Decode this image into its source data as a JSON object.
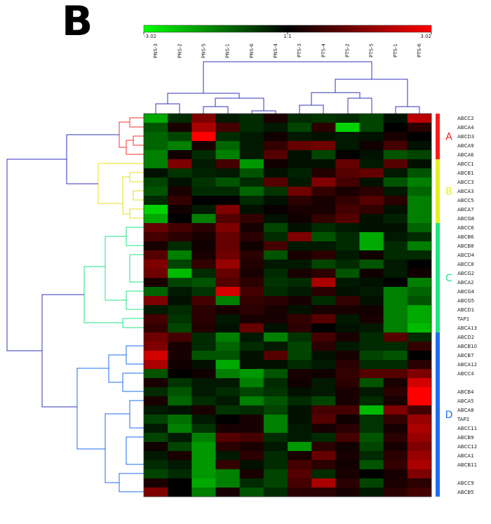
{
  "chart_data": {
    "type": "heatmap",
    "panel_label": "B",
    "colorscale": {
      "low": "#00ff00",
      "mid": "#000000",
      "high": "#ff0000"
    },
    "clim": [
      -3.02,
      3.02
    ],
    "cticks": [
      -3.02,
      {
        "value": 0,
        "label": "1:1"
      },
      3.02
    ],
    "columns": [
      "PNS-3",
      "PNS-2",
      "PNS-5",
      "PNS-1",
      "PNS-6",
      "PNS-4",
      "PTS-3",
      "PTS-4",
      "PTS-2",
      "PTS-5",
      "PTS-1",
      "PTS-6"
    ],
    "rows": [
      "ABCC2",
      "ABCA4",
      "ABCD3",
      "ABCA9",
      "ABCA6",
      "ABCC1",
      "ABCB1",
      "ABCC3",
      "ABCA3",
      "ABCC5",
      "ABCA7",
      "ABCG8",
      "ABCC6",
      "ABCB6",
      "ABCB8",
      "ABCD4",
      "ABCC8",
      "ABCG2",
      "ABCA2",
      "ABCG4",
      "ABCG5",
      "ABCD1",
      "TAP1",
      "ABCA13",
      "ABCD2",
      "ABCB10",
      "ABCB7",
      "ABCA12",
      "ABCC4",
      null,
      "ABCB4",
      "ABCA5",
      "ABCA8",
      "TAP2",
      "ABCC11",
      "ABCB9",
      "ABCC12",
      "ABCA1",
      "ABCB11",
      null,
      "ABCC9",
      "ABCB5"
    ],
    "clusters": [
      {
        "label": "A",
        "color": "#ff1a1a"
      },
      {
        "label": "B",
        "color": "#e6f01e"
      },
      {
        "label": "C",
        "color": "#1ee682"
      },
      {
        "label": "D",
        "color": "#1e6ef0"
      }
    ],
    "values": [
      [
        -2,
        -0.5,
        1.5,
        -0.3,
        -0.5,
        0.3,
        -0.5,
        -0.6,
        -0.5,
        -0.8,
        -0.2,
        2.2
      ],
      [
        -1,
        0.3,
        2,
        0.8,
        -0.5,
        -0.3,
        -0.8,
        0.5,
        -2.5,
        -0.8,
        0,
        0.5
      ],
      [
        -1.2,
        -0.8,
        3,
        -0.5,
        -0.3,
        0.2,
        -0.3,
        -0.2,
        -0.3,
        -0.2,
        0.3,
        0
      ],
      [
        -1.2,
        -1.5,
        0.3,
        -1.2,
        -0.3,
        0.6,
        1.2,
        1.3,
        -0.3,
        0.2,
        0.8,
        -0.2
      ],
      [
        -1.5,
        0.2,
        -0.5,
        -1.5,
        -0.3,
        1,
        -0.2,
        -0.8,
        0,
        -0.2,
        -1,
        -0.8
      ],
      [
        -1.5,
        1.5,
        -0.3,
        0.8,
        -1.8,
        0.2,
        -0.2,
        -0.2,
        1.2,
        -0.3,
        1,
        -0.2
      ],
      [
        -0.2,
        -0.6,
        -0.4,
        -0.3,
        -1,
        -0.2,
        -0.4,
        0.4,
        1,
        1.2,
        -0.3,
        -1
      ],
      [
        -0.8,
        -0.2,
        -0.6,
        -1,
        -0.5,
        1,
        -0.3,
        1.5,
        0.8,
        -0.2,
        -1,
        -1.5
      ],
      [
        -1,
        0.3,
        -0.5,
        -0.5,
        -1.2,
        -0.6,
        1.3,
        0.6,
        0.3,
        0.5,
        -0.3,
        -1.2
      ],
      [
        -0.5,
        0.6,
        0,
        0,
        -0.5,
        -0.2,
        0.5,
        0.3,
        0.6,
        1,
        0.5,
        -1.5
      ],
      [
        -2.5,
        0.2,
        -0.3,
        1.5,
        -0.2,
        0.1,
        0.3,
        0.3,
        0.8,
        0.6,
        -0.2,
        -1.5
      ],
      [
        -2,
        0,
        -1.5,
        1,
        0.6,
        -0.2,
        0.2,
        0.6,
        1,
        -0.2,
        -0.4,
        -1.5
      ],
      [
        1.2,
        0.8,
        0.5,
        1.5,
        0.3,
        -0.8,
        -0.2,
        -0.5,
        -0.3,
        -0.2,
        -0.2,
        -1.2
      ],
      [
        0.8,
        0.5,
        0.3,
        1.2,
        0.5,
        -0.5,
        1.5,
        -1,
        -0.5,
        -2,
        -0.3,
        -0.5
      ],
      [
        0.3,
        -0.5,
        0.2,
        1.2,
        0.2,
        0.8,
        -0.3,
        -0.3,
        -0.5,
        -2,
        -0.5,
        -1.5
      ],
      [
        1,
        -1.5,
        0.3,
        1.3,
        0.5,
        -1,
        0.3,
        0.5,
        -0.3,
        0.2,
        -0.5,
        -0.5
      ],
      [
        1.5,
        -0.8,
        0.6,
        1.8,
        0.4,
        -0.3,
        -0.3,
        -0.8,
        -0.5,
        -1,
        -0.3,
        0
      ],
      [
        1.3,
        -2.2,
        -0.5,
        1.2,
        0.3,
        -0.5,
        0.3,
        0.5,
        -1,
        0.2,
        -0.3,
        0.2
      ],
      [
        0.3,
        -0.8,
        -1,
        1,
        0.5,
        -0.6,
        -0.5,
        2,
        -0.3,
        -0.2,
        0,
        -1.5
      ],
      [
        -1.2,
        -0.3,
        -0.6,
        2.5,
        0.8,
        -0.5,
        -0.3,
        0.5,
        -0.2,
        -0.3,
        -1.5,
        -1.2
      ],
      [
        1.5,
        -0.2,
        0.8,
        -1.5,
        0.6,
        0.5,
        0.3,
        -0.5,
        0.6,
        -0.2,
        -1.5,
        -1
      ],
      [
        -0.3,
        -0.5,
        0.5,
        0.3,
        0.5,
        0.3,
        -0.2,
        0.3,
        0.3,
        0.2,
        -1.5,
        -2
      ],
      [
        0.8,
        -0.6,
        0.5,
        -0.3,
        0.3,
        0.3,
        0.6,
        1,
        -0.3,
        0.3,
        -1.5,
        -2
      ],
      [
        0.6,
        -0.8,
        0.4,
        -0.2,
        1.2,
        -0.2,
        0.5,
        0,
        -0.2,
        -0.3,
        -1.5,
        -2.2
      ],
      [
        1.3,
        0.8,
        -0.5,
        -1.5,
        -0.3,
        -1.5,
        -0.6,
        0.8,
        0.3,
        -0.5,
        1,
        -0.5
      ],
      [
        1.5,
        0.3,
        -0.5,
        -1.2,
        -0.5,
        -0.3,
        -0.8,
        0.5,
        -0.3,
        -0.5,
        -0.5,
        0.6
      ],
      [
        2.5,
        0.3,
        -1,
        -1,
        -0.2,
        1,
        -0.8,
        -0.2,
        0.3,
        -0.8,
        -1,
        0
      ],
      [
        2,
        0.2,
        -0.2,
        -2,
        -0.2,
        -0.2,
        -0.5,
        -0.3,
        0.5,
        -0.5,
        -0.5,
        0.5
      ],
      [
        -1,
        0,
        0.2,
        -1.5,
        -1.8,
        -1,
        0.3,
        0.2,
        0.6,
        1,
        1,
        1.5
      ],
      [
        0.3,
        -0.6,
        -0.3,
        -0.3,
        -1.5,
        -0.5,
        0.2,
        -0.3,
        0.5,
        -1,
        0.3,
        2.5
      ],
      [
        -0.5,
        -1,
        -0.3,
        -0.5,
        -0.8,
        -0.6,
        -0.2,
        -0.3,
        0.3,
        -0.3,
        0.5,
        3
      ],
      [
        0.3,
        -1.2,
        -0.5,
        -0.3,
        -1.5,
        -1,
        -0.5,
        -0.8,
        0.3,
        -0.5,
        0.3,
        3
      ],
      [
        -0.3,
        -0.2,
        0.3,
        -0.6,
        -0.5,
        -0.8,
        -0.2,
        0.8,
        0.8,
        -2.2,
        1.5,
        0.8
      ],
      [
        -0.8,
        -1.3,
        -0.3,
        0,
        0.3,
        -1.5,
        -0.2,
        1,
        0.2,
        -0.6,
        0.6,
        1.8
      ],
      [
        -0.3,
        -1.5,
        -0.6,
        0.3,
        0.3,
        -1.5,
        -0.3,
        0.3,
        0.5,
        -0.6,
        0.3,
        2
      ],
      [
        -0.8,
        -0.3,
        -1.5,
        1,
        0.8,
        -0.5,
        -0.3,
        -0.5,
        0.8,
        -1,
        0.5,
        1.8
      ],
      [
        0.2,
        -0.8,
        -1.8,
        0.5,
        0.3,
        -0.3,
        -1.8,
        0.5,
        0.2,
        -0.8,
        0.3,
        1.5
      ],
      [
        -0.3,
        0.3,
        -1.8,
        -0.3,
        0.5,
        -0.5,
        0.3,
        1.2,
        0.3,
        -0.5,
        0.5,
        1.8
      ],
      [
        -0.5,
        -0.3,
        -1.8,
        0.6,
        -0.2,
        -0.5,
        0.8,
        0.5,
        0.2,
        -1,
        0.6,
        2
      ],
      [
        -0.8,
        -0.5,
        -1.8,
        -1.5,
        0.3,
        -0.8,
        1,
        -0.5,
        0.3,
        0,
        0.3,
        1.5
      ],
      [
        0.3,
        0,
        -2,
        -1.5,
        -0.5,
        -0.8,
        0.8,
        2,
        0.5,
        -0.8,
        0.3,
        0.5
      ],
      [
        1.5,
        0,
        -1.5,
        0.3,
        -1,
        -0.5,
        0.5,
        0.5,
        0.3,
        -0.3,
        0.5,
        0.8
      ]
    ]
  }
}
